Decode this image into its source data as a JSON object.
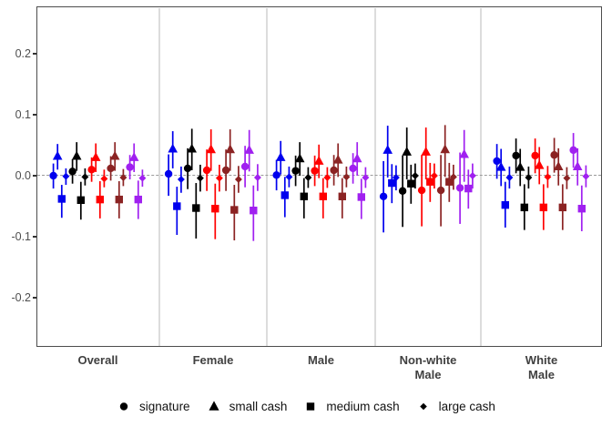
{
  "chart_data": {
    "type": "scatter",
    "subtype": "coefficient-pointrange-faceted",
    "title": "",
    "grid": "off",
    "zero_reference_line": true,
    "y_axis": {
      "range": [
        -0.28,
        0.28
      ],
      "ticks": [
        {
          "value": 0.2,
          "label": "0.2"
        },
        {
          "value": 0.1,
          "label": "0.1"
        },
        {
          "value": 0.0,
          "label": "0.0"
        },
        {
          "value": -0.1,
          "label": "-0.1"
        },
        {
          "value": -0.2,
          "label": "-0.2"
        }
      ]
    },
    "shape_order": [
      "circle",
      "triangle",
      "square",
      "diamond"
    ],
    "legend": {
      "position": "bottom",
      "items": [
        {
          "label": "signature",
          "marker": "circle"
        },
        {
          "label": "small cash",
          "marker": "triangle"
        },
        {
          "label": "medium cash",
          "marker": "square"
        },
        {
          "label": "large cash",
          "marker": "diamond"
        }
      ],
      "marker_color": "#000000"
    },
    "group_colors": [
      "#0000EE",
      "#000000",
      "#FF0000",
      "#8B2323",
      "#A020F0"
    ],
    "panels": [
      {
        "label": "Overall",
        "display_label": "Overall",
        "series": [
          {
            "color": "blue",
            "hex": "#0000EE",
            "points": [
              [
                0.0,
                -0.021,
                0.02
              ],
              [
                0.032,
                0.01,
                0.052
              ],
              [
                -0.038,
                -0.069,
                -0.015
              ],
              [
                -0.001,
                -0.015,
                0.012
              ]
            ]
          },
          {
            "color": "black",
            "hex": "#000000",
            "points": [
              [
                0.007,
                -0.013,
                0.027
              ],
              [
                0.032,
                0.008,
                0.055
              ],
              [
                -0.04,
                -0.072,
                -0.01
              ],
              [
                -0.002,
                -0.016,
                0.012
              ]
            ]
          },
          {
            "color": "red",
            "hex": "#FF0000",
            "points": [
              [
                0.01,
                -0.01,
                0.03
              ],
              [
                0.03,
                0.006,
                0.053
              ],
              [
                -0.039,
                -0.07,
                -0.009
              ],
              [
                -0.005,
                -0.019,
                0.01
              ]
            ]
          },
          {
            "color": "darkred",
            "hex": "#8B2323",
            "points": [
              [
                0.012,
                -0.008,
                0.032
              ],
              [
                0.032,
                0.008,
                0.055
              ],
              [
                -0.039,
                -0.07,
                -0.009
              ],
              [
                -0.003,
                -0.017,
                0.011
              ]
            ]
          },
          {
            "color": "purple",
            "hex": "#A020F0",
            "points": [
              [
                0.014,
                -0.006,
                0.034
              ],
              [
                0.03,
                0.006,
                0.053
              ],
              [
                -0.039,
                -0.071,
                -0.008
              ],
              [
                -0.004,
                -0.018,
                0.01
              ]
            ]
          }
        ]
      },
      {
        "label": "Female",
        "display_label": "Female",
        "series": [
          {
            "color": "blue",
            "hex": "#0000EE",
            "points": [
              [
                0.003,
                -0.033,
                0.035
              ],
              [
                0.044,
                0.012,
                0.073
              ],
              [
                -0.05,
                -0.097,
                -0.018
              ],
              [
                -0.006,
                -0.028,
                0.015
              ]
            ]
          },
          {
            "color": "black",
            "hex": "#000000",
            "points": [
              [
                0.012,
                -0.022,
                0.045
              ],
              [
                0.044,
                0.009,
                0.077
              ],
              [
                -0.053,
                -0.103,
                -0.012
              ],
              [
                -0.004,
                -0.026,
                0.018
              ]
            ]
          },
          {
            "color": "red",
            "hex": "#FF0000",
            "points": [
              [
                0.009,
                -0.025,
                0.043
              ],
              [
                0.043,
                0.008,
                0.076
              ],
              [
                -0.054,
                -0.104,
                -0.013
              ],
              [
                -0.004,
                -0.026,
                0.018
              ]
            ]
          },
          {
            "color": "darkred",
            "hex": "#8B2323",
            "points": [
              [
                0.009,
                -0.025,
                0.043
              ],
              [
                0.043,
                0.008,
                0.076
              ],
              [
                -0.056,
                -0.106,
                -0.015
              ],
              [
                -0.006,
                -0.028,
                0.016
              ]
            ]
          },
          {
            "color": "purple",
            "hex": "#A020F0",
            "points": [
              [
                0.015,
                -0.019,
                0.049
              ],
              [
                0.042,
                0.007,
                0.075
              ],
              [
                -0.057,
                -0.107,
                -0.016
              ],
              [
                -0.003,
                -0.025,
                0.019
              ]
            ]
          }
        ]
      },
      {
        "label": "Male",
        "display_label": "Male",
        "series": [
          {
            "color": "blue",
            "hex": "#0000EE",
            "points": [
              [
                0.001,
                -0.024,
                0.026
              ],
              [
                0.03,
                0.002,
                0.057
              ],
              [
                -0.032,
                -0.068,
                -0.002
              ],
              [
                -0.002,
                -0.019,
                0.015
              ]
            ]
          },
          {
            "color": "black",
            "hex": "#000000",
            "points": [
              [
                0.008,
                -0.017,
                0.033
              ],
              [
                0.028,
                0.0,
                0.055
              ],
              [
                -0.034,
                -0.07,
                -0.004
              ],
              [
                -0.003,
                -0.02,
                0.014
              ]
            ]
          },
          {
            "color": "red",
            "hex": "#FF0000",
            "points": [
              [
                0.008,
                -0.017,
                0.033
              ],
              [
                0.024,
                -0.004,
                0.051
              ],
              [
                -0.034,
                -0.07,
                -0.004
              ],
              [
                -0.003,
                -0.02,
                0.014
              ]
            ]
          },
          {
            "color": "darkred",
            "hex": "#8B2323",
            "points": [
              [
                0.009,
                -0.016,
                0.034
              ],
              [
                0.026,
                -0.002,
                0.053
              ],
              [
                -0.034,
                -0.07,
                -0.004
              ],
              [
                -0.002,
                -0.019,
                0.015
              ]
            ]
          },
          {
            "color": "purple",
            "hex": "#A020F0",
            "points": [
              [
                0.012,
                -0.013,
                0.037
              ],
              [
                0.028,
                0.0,
                0.055
              ],
              [
                -0.035,
                -0.071,
                -0.005
              ],
              [
                -0.003,
                -0.02,
                0.014
              ]
            ]
          }
        ]
      },
      {
        "label": "Non-white Male",
        "display_label": "Non-white\nMale",
        "series": [
          {
            "color": "blue",
            "hex": "#0000EE",
            "points": [
              [
                -0.034,
                -0.093,
                0.024
              ],
              [
                0.042,
                -0.003,
                0.082
              ],
              [
                -0.012,
                -0.045,
                0.019
              ],
              [
                -0.003,
                -0.024,
                0.017
              ]
            ]
          },
          {
            "color": "black",
            "hex": "#000000",
            "points": [
              [
                -0.025,
                -0.084,
                0.033
              ],
              [
                0.039,
                -0.006,
                0.079
              ],
              [
                -0.013,
                -0.046,
                0.018
              ],
              [
                0.0,
                -0.021,
                0.02
              ]
            ]
          },
          {
            "color": "red",
            "hex": "#FF0000",
            "points": [
              [
                -0.024,
                -0.083,
                0.034
              ],
              [
                0.039,
                -0.006,
                0.079
              ],
              [
                -0.01,
                -0.043,
                0.021
              ],
              [
                0.0,
                -0.021,
                0.02
              ]
            ]
          },
          {
            "color": "darkred",
            "hex": "#8B2323",
            "points": [
              [
                -0.024,
                -0.083,
                0.034
              ],
              [
                0.043,
                -0.002,
                0.083
              ],
              [
                -0.01,
                -0.043,
                0.021
              ],
              [
                -0.002,
                -0.023,
                0.018
              ]
            ]
          },
          {
            "color": "purple",
            "hex": "#A020F0",
            "points": [
              [
                -0.02,
                -0.079,
                0.038
              ],
              [
                0.035,
                -0.01,
                0.075
              ],
              [
                -0.021,
                -0.054,
                0.01
              ],
              [
                0.0,
                -0.021,
                0.02
              ]
            ]
          }
        ]
      },
      {
        "label": "White Male",
        "display_label": "White\nMale",
        "series": [
          {
            "color": "blue",
            "hex": "#0000EE",
            "points": [
              [
                0.024,
                -0.005,
                0.052
              ],
              [
                0.014,
                -0.017,
                0.044
              ],
              [
                -0.048,
                -0.085,
                -0.01
              ],
              [
                -0.003,
                -0.021,
                0.015
              ]
            ]
          },
          {
            "color": "black",
            "hex": "#000000",
            "points": [
              [
                0.033,
                0.004,
                0.061
              ],
              [
                0.014,
                -0.017,
                0.044
              ],
              [
                -0.052,
                -0.089,
                -0.014
              ],
              [
                -0.003,
                -0.021,
                0.015
              ]
            ]
          },
          {
            "color": "red",
            "hex": "#FF0000",
            "points": [
              [
                0.033,
                0.004,
                0.061
              ],
              [
                0.017,
                -0.014,
                0.047
              ],
              [
                -0.052,
                -0.089,
                -0.014
              ],
              [
                -0.002,
                -0.02,
                0.016
              ]
            ]
          },
          {
            "color": "darkred",
            "hex": "#8B2323",
            "points": [
              [
                0.034,
                0.005,
                0.062
              ],
              [
                0.015,
                -0.016,
                0.045
              ],
              [
                -0.052,
                -0.089,
                -0.014
              ],
              [
                -0.004,
                -0.022,
                0.014
              ]
            ]
          },
          {
            "color": "purple",
            "hex": "#A020F0",
            "points": [
              [
                0.042,
                0.013,
                0.07
              ],
              [
                0.015,
                -0.016,
                0.045
              ],
              [
                -0.054,
                -0.091,
                -0.016
              ],
              [
                -0.001,
                -0.019,
                0.017
              ]
            ]
          }
        ]
      }
    ],
    "style_colors": {
      "panel_border": "#4d4d4d",
      "panel_divider": "#dcdcdc",
      "zero_line": "#9a9a9a",
      "axis_text": "#4d4d4d",
      "panel_label_text": "#404040",
      "legend_text": "#111111"
    }
  }
}
